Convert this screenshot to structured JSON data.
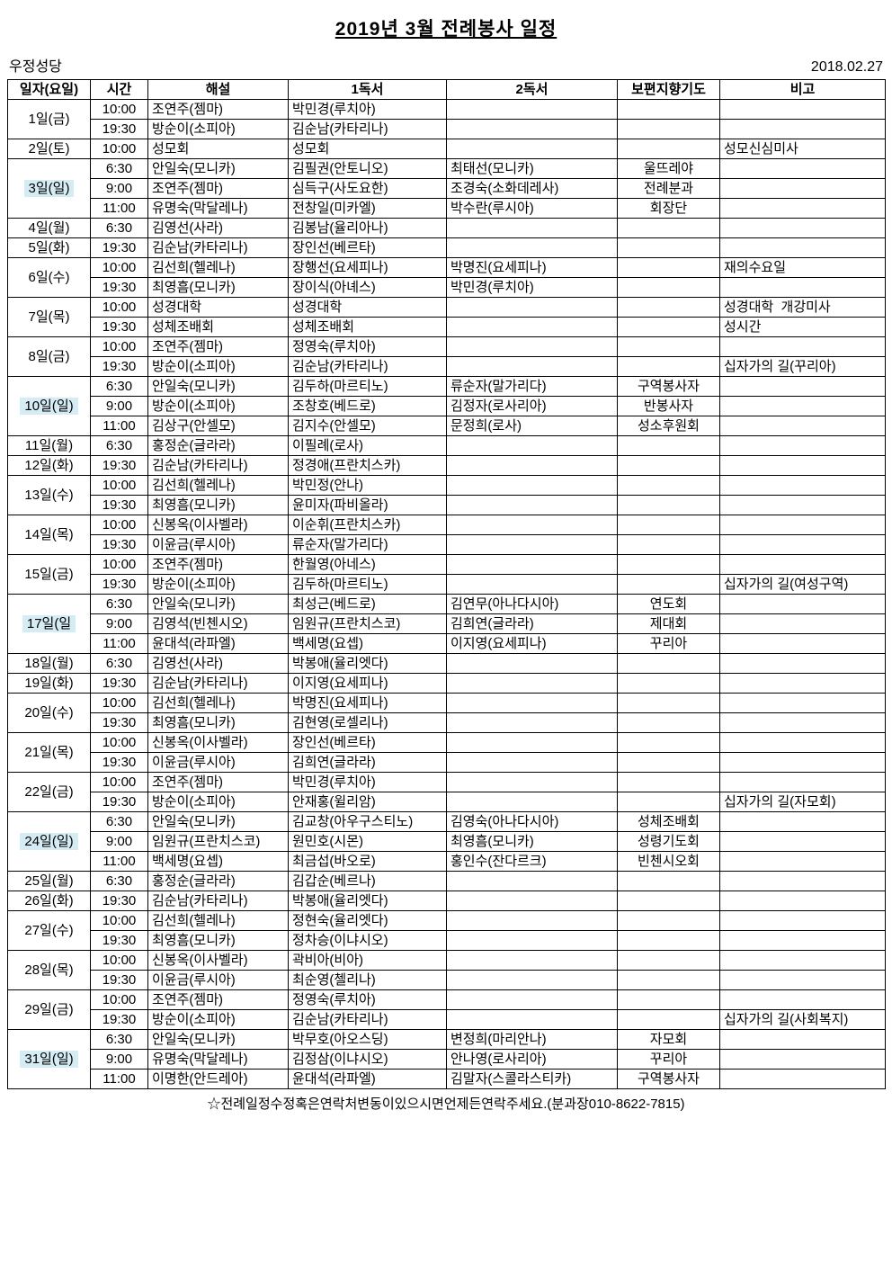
{
  "header": {
    "title": "2019년  3월  전례봉사  일정",
    "org": "우정성당",
    "date": "2018.02.27"
  },
  "colors": {
    "sunday_highlight": "#d6ecf5"
  },
  "table": {
    "columns": [
      "일자(요일)",
      "시간",
      "해설",
      "1독서",
      "2독서",
      "보편지향기도",
      "비고"
    ],
    "rows": [
      {
        "date": "1일(금)",
        "highlight": false,
        "slots": [
          {
            "time": "10:00",
            "commentator": "조연주(젬마)",
            "reading1": "박민경(루치아)",
            "reading2": "",
            "prayer": "",
            "note": ""
          },
          {
            "time": "19:30",
            "commentator": "방순이(소피아)",
            "reading1": "김순남(카타리나)",
            "reading2": "",
            "prayer": "",
            "note": ""
          }
        ]
      },
      {
        "date": "2일(토)",
        "highlight": false,
        "slots": [
          {
            "time": "10:00",
            "commentator": "성모회",
            "reading1": "성모회",
            "reading2": "",
            "prayer": "",
            "note": "성모신심미사"
          }
        ]
      },
      {
        "date": "3일(일)",
        "highlight": true,
        "slots": [
          {
            "time": "6:30",
            "commentator": "안일숙(모니카)",
            "reading1": "김필권(안토니오)",
            "reading2": "최태선(모니카)",
            "prayer": "울뜨레야",
            "note": ""
          },
          {
            "time": "9:00",
            "commentator": "조연주(젬마)",
            "reading1": "심득구(사도요한)",
            "reading2": "조경숙(소화데레사)",
            "prayer": "전례분과",
            "note": ""
          },
          {
            "time": "11:00",
            "commentator": "유명숙(막달레나)",
            "reading1": "전창일(미카엘)",
            "reading2": "박수란(루시아)",
            "prayer": "회장단",
            "note": ""
          }
        ]
      },
      {
        "date": "4일(월)",
        "highlight": false,
        "slots": [
          {
            "time": "6:30",
            "commentator": "김영선(사라)",
            "reading1": "김봉남(율리아나)",
            "reading2": "",
            "prayer": "",
            "note": ""
          }
        ]
      },
      {
        "date": "5일(화)",
        "highlight": false,
        "slots": [
          {
            "time": "19:30",
            "commentator": "김순남(카타리나)",
            "reading1": "장인선(베르타)",
            "reading2": "",
            "prayer": "",
            "note": ""
          }
        ]
      },
      {
        "date": "6일(수)",
        "highlight": false,
        "slots": [
          {
            "time": "10:00",
            "commentator": "김선희(헬레나)",
            "reading1": "장행선(요세피나)",
            "reading2": "박명진(요세피나)",
            "prayer": "",
            "note": "재의수요일"
          },
          {
            "time": "19:30",
            "commentator": "최영흠(모니카)",
            "reading1": "장이식(아녜스)",
            "reading2": "박민경(루치아)",
            "prayer": "",
            "note": ""
          }
        ]
      },
      {
        "date": "7일(목)",
        "highlight": false,
        "slots": [
          {
            "time": "10:00",
            "commentator": "성경대학",
            "reading1": "성경대학",
            "reading2": "",
            "prayer": "",
            "note": "성경대학  개강미사"
          },
          {
            "time": "19:30",
            "commentator": "성체조배회",
            "reading1": "성체조배회",
            "reading2": "",
            "prayer": "",
            "note": "성시간"
          }
        ]
      },
      {
        "date": "8일(금)",
        "highlight": false,
        "slots": [
          {
            "time": "10:00",
            "commentator": "조연주(젬마)",
            "reading1": "정영숙(루치아)",
            "reading2": "",
            "prayer": "",
            "note": ""
          },
          {
            "time": "19:30",
            "commentator": "방순이(소피아)",
            "reading1": "김순남(카타리나)",
            "reading2": "",
            "prayer": "",
            "note": "십자가의 길(꾸리아)"
          }
        ]
      },
      {
        "date": "10일(일)",
        "highlight": true,
        "slots": [
          {
            "time": "6:30",
            "commentator": "안일숙(모니카)",
            "reading1": "김두하(마르티노)",
            "reading2": "류순자(말가리다)",
            "prayer": "구역봉사자",
            "note": ""
          },
          {
            "time": "9:00",
            "commentator": "방순이(소피아)",
            "reading1": "조창호(베드로)",
            "reading2": "김정자(로사리아)",
            "prayer": "반봉사자",
            "note": ""
          },
          {
            "time": "11:00",
            "commentator": "김상구(안셀모)",
            "reading1": "김지수(안셀모)",
            "reading2": "문정희(로사)",
            "prayer": "성소후원회",
            "note": ""
          }
        ]
      },
      {
        "date": "11일(월)",
        "highlight": false,
        "slots": [
          {
            "time": "6:30",
            "commentator": "홍정순(글라라)",
            "reading1": "이필례(로사)",
            "reading2": "",
            "prayer": "",
            "note": ""
          }
        ]
      },
      {
        "date": "12일(화)",
        "highlight": false,
        "slots": [
          {
            "time": "19:30",
            "commentator": "김순남(카타리나)",
            "reading1": "정경애(프란치스카)",
            "reading2": "",
            "prayer": "",
            "note": ""
          }
        ]
      },
      {
        "date": "13일(수)",
        "highlight": false,
        "slots": [
          {
            "time": "10:00",
            "commentator": "김선희(헬레나)",
            "reading1": "박민정(안나)",
            "reading2": "",
            "prayer": "",
            "note": ""
          },
          {
            "time": "19:30",
            "commentator": "최영흠(모니카)",
            "reading1": "윤미자(파비올라)",
            "reading2": "",
            "prayer": "",
            "note": ""
          }
        ]
      },
      {
        "date": "14일(목)",
        "highlight": false,
        "slots": [
          {
            "time": "10:00",
            "commentator": "신봉옥(이사벨라)",
            "reading1": "이순휘(프란치스카)",
            "reading2": "",
            "prayer": "",
            "note": ""
          },
          {
            "time": "19:30",
            "commentator": "이윤금(루시아)",
            "reading1": "류순자(말가리다)",
            "reading2": "",
            "prayer": "",
            "note": ""
          }
        ]
      },
      {
        "date": "15일(금)",
        "highlight": false,
        "slots": [
          {
            "time": "10:00",
            "commentator": "조연주(젬마)",
            "reading1": "한월영(아네스)",
            "reading2": "",
            "prayer": "",
            "note": ""
          },
          {
            "time": "19:30",
            "commentator": "방순이(소피아)",
            "reading1": "김두하(마르티노)",
            "reading2": "",
            "prayer": "",
            "note": "십자가의 길(여성구역)"
          }
        ]
      },
      {
        "date": "17일(일",
        "highlight": true,
        "slots": [
          {
            "time": "6:30",
            "commentator": "안일숙(모니카)",
            "reading1": "최성근(베드로)",
            "reading2": "김연무(아나다시아)",
            "prayer": "연도회",
            "note": ""
          },
          {
            "time": "9:00",
            "commentator": "김영석(빈첸시오)",
            "reading1": "임원규(프란치스코)",
            "reading2": "김희연(글라라)",
            "prayer": "제대회",
            "note": ""
          },
          {
            "time": "11:00",
            "commentator": "윤대석(라파엘)",
            "reading1": "백세명(요셉)",
            "reading2": "이지영(요세피나)",
            "prayer": "꾸리아",
            "note": ""
          }
        ]
      },
      {
        "date": "18일(월)",
        "highlight": false,
        "slots": [
          {
            "time": "6:30",
            "commentator": "김영선(사라)",
            "reading1": "박봉애(율리엣다)",
            "reading2": "",
            "prayer": "",
            "note": ""
          }
        ]
      },
      {
        "date": "19일(화)",
        "highlight": false,
        "slots": [
          {
            "time": "19:30",
            "commentator": "김순남(카타리나)",
            "reading1": "이지영(요세피나)",
            "reading2": "",
            "prayer": "",
            "note": ""
          }
        ]
      },
      {
        "date": "20일(수)",
        "highlight": false,
        "slots": [
          {
            "time": "10:00",
            "commentator": "김선희(헬레나)",
            "reading1": "박명진(요세피나)",
            "reading2": "",
            "prayer": "",
            "note": ""
          },
          {
            "time": "19:30",
            "commentator": "최영흠(모니카)",
            "reading1": "김현영(로셀리나)",
            "reading2": "",
            "prayer": "",
            "note": ""
          }
        ]
      },
      {
        "date": "21일(목)",
        "highlight": false,
        "slots": [
          {
            "time": "10:00",
            "commentator": "신봉옥(이사벨라)",
            "reading1": "장인선(베르타)",
            "reading2": "",
            "prayer": "",
            "note": ""
          },
          {
            "time": "19:30",
            "commentator": "이윤금(루시아)",
            "reading1": "김희연(글라라)",
            "reading2": "",
            "prayer": "",
            "note": ""
          }
        ]
      },
      {
        "date": "22일(금)",
        "highlight": false,
        "slots": [
          {
            "time": "10:00",
            "commentator": "조연주(젬마)",
            "reading1": "박민경(루치아)",
            "reading2": "",
            "prayer": "",
            "note": ""
          },
          {
            "time": "19:30",
            "commentator": "방순이(소피아)",
            "reading1": "안재홍(윌리암)",
            "reading2": "",
            "prayer": "",
            "note": "십자가의 길(자모회)"
          }
        ]
      },
      {
        "date": "24일(일)",
        "highlight": true,
        "slots": [
          {
            "time": "6:30",
            "commentator": "안일숙(모니카)",
            "reading1": "김교창(아우구스티노)",
            "reading2": "김영숙(아나다시아)",
            "prayer": "성체조배회",
            "note": ""
          },
          {
            "time": "9:00",
            "commentator": "임원규(프란치스코)",
            "reading1": "원민호(시몬)",
            "reading2": "최영흠(모니카)",
            "prayer": "성령기도회",
            "note": ""
          },
          {
            "time": "11:00",
            "commentator": "백세명(요셉)",
            "reading1": "최금섭(바오로)",
            "reading2": "홍인수(잔다르크)",
            "prayer": "빈첸시오회",
            "note": ""
          }
        ]
      },
      {
        "date": "25일(월)",
        "highlight": false,
        "slots": [
          {
            "time": "6:30",
            "commentator": "홍정순(글라라)",
            "reading1": "김갑순(베르나)",
            "reading2": "",
            "prayer": "",
            "note": ""
          }
        ]
      },
      {
        "date": "26일(화)",
        "highlight": false,
        "slots": [
          {
            "time": "19:30",
            "commentator": "김순남(카타리나)",
            "reading1": "박봉애(율리엣다)",
            "reading2": "",
            "prayer": "",
            "note": ""
          }
        ]
      },
      {
        "date": "27일(수)",
        "highlight": false,
        "slots": [
          {
            "time": "10:00",
            "commentator": "김선희(헬레나)",
            "reading1": "정현숙(율리엣다)",
            "reading2": "",
            "prayer": "",
            "note": ""
          },
          {
            "time": "19:30",
            "commentator": "최영흠(모니카)",
            "reading1": "정차승(이냐시오)",
            "reading2": "",
            "prayer": "",
            "note": ""
          }
        ]
      },
      {
        "date": "28일(목)",
        "highlight": false,
        "slots": [
          {
            "time": "10:00",
            "commentator": "신봉옥(이사벨라)",
            "reading1": "곽비아(비아)",
            "reading2": "",
            "prayer": "",
            "note": ""
          },
          {
            "time": "19:30",
            "commentator": "이윤금(루시아)",
            "reading1": "최순영(첼리나)",
            "reading2": "",
            "prayer": "",
            "note": ""
          }
        ]
      },
      {
        "date": "29일(금)",
        "highlight": false,
        "slots": [
          {
            "time": "10:00",
            "commentator": "조연주(젬마)",
            "reading1": "정영숙(루치아)",
            "reading2": "",
            "prayer": "",
            "note": ""
          },
          {
            "time": "19:30",
            "commentator": "방순이(소피아)",
            "reading1": "김순남(카타리나)",
            "reading2": "",
            "prayer": "",
            "note": "십자가의 길(사회복지)"
          }
        ]
      },
      {
        "date": "31일(일)",
        "highlight": true,
        "slots": [
          {
            "time": "6:30",
            "commentator": "안일숙(모니카)",
            "reading1": "박무호(아오스딩)",
            "reading2": "변정희(마리안나)",
            "prayer": "자모회",
            "note": ""
          },
          {
            "time": "9:00",
            "commentator": "유명숙(막달레나)",
            "reading1": "김정삼(이냐시오)",
            "reading2": "안나영(로사리아)",
            "prayer": "꾸리아",
            "note": ""
          },
          {
            "time": "11:00",
            "commentator": "이명한(안드레아)",
            "reading1": "윤대석(라파엘)",
            "reading2": "김말자(스콜라스티카)",
            "prayer": "구역봉사자",
            "note": ""
          }
        ]
      }
    ]
  },
  "footer": {
    "notice": "☆전례일정수정혹은연락처변동이있으시면언제든연락주세요.(분과장010-8622-7815)"
  }
}
